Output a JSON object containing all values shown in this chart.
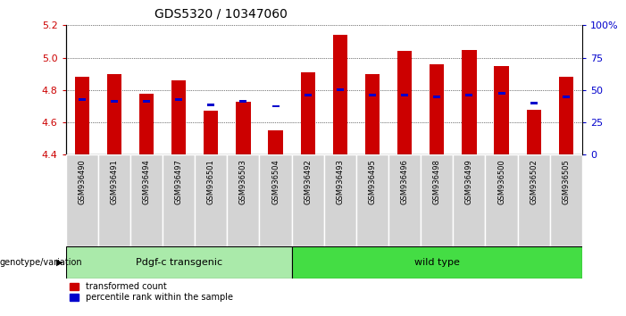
{
  "title": "GDS5320 / 10347060",
  "samples": [
    "GSM936490",
    "GSM936491",
    "GSM936494",
    "GSM936497",
    "GSM936501",
    "GSM936503",
    "GSM936504",
    "GSM936492",
    "GSM936493",
    "GSM936495",
    "GSM936496",
    "GSM936498",
    "GSM936499",
    "GSM936500",
    "GSM936502",
    "GSM936505"
  ],
  "red_values": [
    4.88,
    4.9,
    4.78,
    4.86,
    4.67,
    4.73,
    4.55,
    4.91,
    5.14,
    4.9,
    5.04,
    4.96,
    5.05,
    4.95,
    4.68,
    4.88
  ],
  "blue_values": [
    4.74,
    4.73,
    4.73,
    4.74,
    4.71,
    4.73,
    4.7,
    4.77,
    4.8,
    4.77,
    4.77,
    4.76,
    4.77,
    4.78,
    4.72,
    4.76
  ],
  "group1_label": "Pdgf-c transgenic",
  "group2_label": "wild type",
  "group1_count": 7,
  "group2_count": 9,
  "ymin": 4.4,
  "ymax": 5.2,
  "yticks_left": [
    4.4,
    4.6,
    4.8,
    5.0,
    5.2
  ],
  "yticks_right_vals": [
    0,
    25,
    50,
    75,
    100
  ],
  "legend_transformed": "transformed count",
  "legend_percentile": "percentile rank within the sample",
  "red_color": "#cc0000",
  "blue_color": "#0000cc",
  "group1_bg": "#aaeaaa",
  "group2_bg": "#44dd44",
  "bar_width": 0.45,
  "baseline": 4.4,
  "genotype_label": "genotype/variation"
}
